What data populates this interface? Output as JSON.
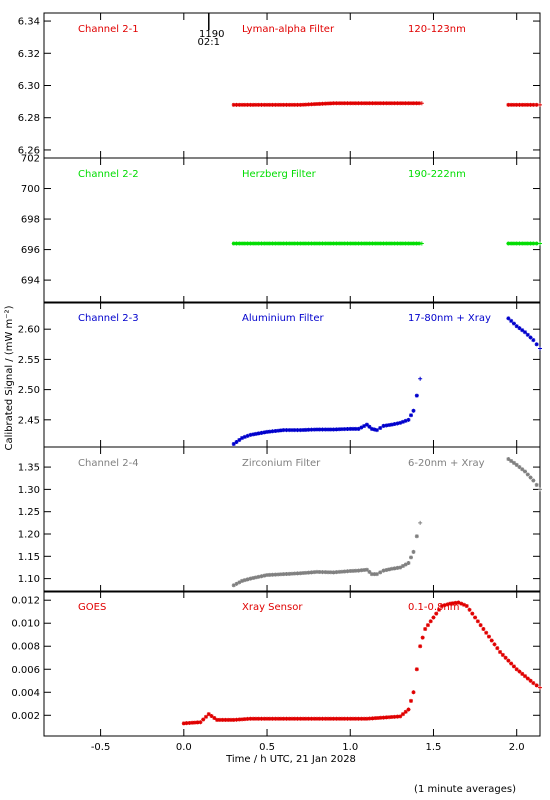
{
  "colors": {
    "red": "#e00000",
    "green": "#00dd00",
    "blue": "#0000cc",
    "gray": "#808080"
  },
  "xaxis": {
    "label": "Time / h UTC, 21 Jan 2028",
    "ticks": [
      "-0.5",
      "0.0",
      "0.5",
      "1.0",
      "1.5",
      "2.0"
    ],
    "tick_values": [
      -0.5,
      0.0,
      0.5,
      1.0,
      1.5,
      2.0
    ],
    "range": [
      -0.84,
      2.14
    ]
  },
  "yaxis_label": "Calibrated Signal / (mW m⁻²)",
  "footer": "(1 minute averages)",
  "marker": {
    "line1": "1190",
    "line2": "02:1",
    "x": 0.15
  },
  "chart_data": [
    {
      "type": "scatter",
      "name_label": "Channel 2-1",
      "filter": "Lyman-alpha Filter",
      "band": "120-123nm",
      "color": "red",
      "ylim": [
        6.255,
        6.345
      ],
      "yticks": [
        6.26,
        6.28,
        6.3,
        6.32,
        6.34
      ],
      "ytick_labels": [
        "6.26",
        "6.28",
        "6.30",
        "6.32",
        "6.34"
      ],
      "series": [
        {
          "x": [
            0.3,
            0.5,
            0.7,
            0.9,
            1.1,
            1.3,
            1.43
          ],
          "y": [
            6.288,
            6.288,
            6.288,
            6.289,
            6.289,
            6.289,
            6.289
          ]
        },
        {
          "x": [
            1.95,
            2.0,
            2.05,
            2.1,
            2.14
          ],
          "y": [
            6.288,
            6.288,
            6.288,
            6.288,
            6.288
          ]
        }
      ]
    },
    {
      "type": "scatter",
      "name_label": "Channel 2-2",
      "filter": "Herzberg Filter",
      "band": "190-222nm",
      "color": "green",
      "ylim": [
        692.5,
        702.0
      ],
      "yticks": [
        694,
        696,
        698,
        700,
        702
      ],
      "ytick_labels": [
        "694",
        "696",
        "698",
        "700",
        "702"
      ],
      "series": [
        {
          "x": [
            0.3,
            0.5,
            0.7,
            0.9,
            1.1,
            1.3,
            1.43
          ],
          "y": [
            696.4,
            696.4,
            696.4,
            696.4,
            696.4,
            696.4,
            696.4
          ]
        },
        {
          "x": [
            1.95,
            2.0,
            2.05,
            2.1,
            2.14
          ],
          "y": [
            696.4,
            696.4,
            696.4,
            696.4,
            696.4
          ]
        }
      ]
    },
    {
      "type": "scatter",
      "name_label": "Channel 2-3",
      "filter": "Aluminium Filter",
      "band": "17-80nm + Xray",
      "color": "blue",
      "ylim": [
        2.405,
        2.645
      ],
      "yticks": [
        2.45,
        2.5,
        2.55,
        2.6
      ],
      "ytick_labels": [
        "2.45",
        "2.50",
        "2.55",
        "2.60"
      ],
      "series": [
        {
          "x": [
            0.3,
            0.35,
            0.4,
            0.5,
            0.6,
            0.7,
            0.8,
            0.9,
            1.0,
            1.05,
            1.1,
            1.13,
            1.16,
            1.2,
            1.25,
            1.3,
            1.35,
            1.38,
            1.4,
            1.42
          ],
          "y": [
            2.41,
            2.42,
            2.425,
            2.43,
            2.433,
            2.433,
            2.434,
            2.434,
            2.435,
            2.435,
            2.442,
            2.435,
            2.433,
            2.44,
            2.442,
            2.445,
            2.45,
            2.465,
            2.49,
            2.518
          ]
        },
        {
          "x": [
            1.95,
            2.0,
            2.05,
            2.1,
            2.14
          ],
          "y": [
            2.618,
            2.605,
            2.595,
            2.582,
            2.568
          ]
        }
      ]
    },
    {
      "type": "scatter",
      "name_label": "Channel 2-4",
      "filter": "Zirconium Filter",
      "band": "6-20nm + Xray",
      "color": "gray",
      "ylim": [
        1.07,
        1.395
      ],
      "yticks": [
        1.1,
        1.15,
        1.2,
        1.25,
        1.3,
        1.35
      ],
      "ytick_labels": [
        "1.10",
        "1.15",
        "1.20",
        "1.25",
        "1.30",
        "1.35"
      ],
      "series": [
        {
          "x": [
            0.3,
            0.35,
            0.4,
            0.5,
            0.6,
            0.7,
            0.8,
            0.9,
            1.0,
            1.05,
            1.1,
            1.13,
            1.16,
            1.2,
            1.25,
            1.3,
            1.35,
            1.38,
            1.4,
            1.42
          ],
          "y": [
            1.085,
            1.095,
            1.1,
            1.108,
            1.11,
            1.112,
            1.115,
            1.114,
            1.117,
            1.118,
            1.12,
            1.11,
            1.11,
            1.118,
            1.122,
            1.125,
            1.135,
            1.16,
            1.195,
            1.225
          ]
        },
        {
          "x": [
            1.95,
            2.0,
            2.05,
            2.1,
            2.14
          ],
          "y": [
            1.368,
            1.355,
            1.34,
            1.32,
            1.3
          ]
        }
      ]
    },
    {
      "type": "scatter",
      "name_label": "GOES",
      "filter": "Xray Sensor",
      "band": "0.1-0.8nm",
      "color": "red",
      "ylim": [
        0.0002,
        0.0128
      ],
      "yticks": [
        0.002,
        0.004,
        0.006,
        0.008,
        0.01,
        0.012
      ],
      "ytick_labels": [
        "0.002",
        "0.004",
        "0.006",
        "0.008",
        "0.010",
        "0.012"
      ],
      "series": [
        {
          "x": [
            0.0,
            0.1,
            0.15,
            0.2,
            0.3,
            0.4,
            0.6,
            0.8,
            1.0,
            1.1,
            1.2,
            1.3,
            1.35,
            1.38,
            1.4,
            1.42,
            1.45,
            1.5,
            1.55,
            1.6,
            1.65,
            1.7,
            1.75,
            1.8,
            1.9,
            2.0,
            2.1,
            2.14
          ],
          "y": [
            0.0013,
            0.0014,
            0.0021,
            0.0016,
            0.0016,
            0.0017,
            0.0017,
            0.0017,
            0.0017,
            0.0017,
            0.0018,
            0.0019,
            0.0025,
            0.004,
            0.006,
            0.008,
            0.0095,
            0.0105,
            0.0115,
            0.0117,
            0.0118,
            0.0115,
            0.0105,
            0.0095,
            0.0075,
            0.006,
            0.0048,
            0.0044
          ]
        }
      ]
    }
  ]
}
